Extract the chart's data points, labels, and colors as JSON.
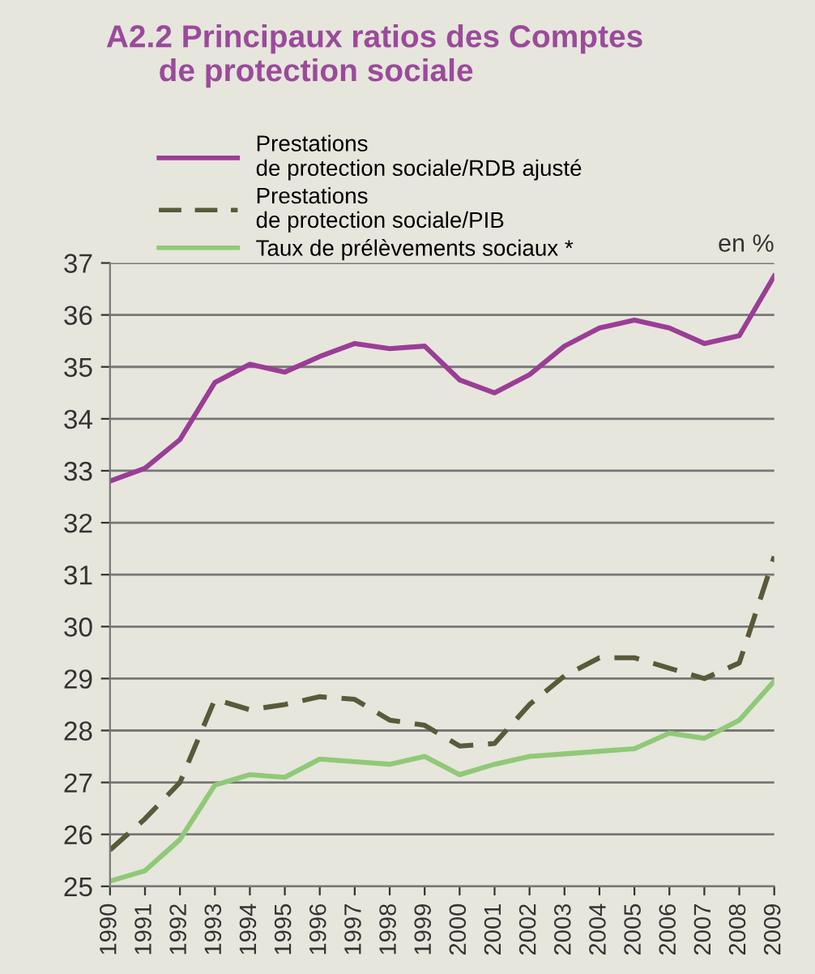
{
  "chart_data": {
    "type": "line",
    "title": "A2.2 Principaux ratios des Comptes\n      de protection sociale",
    "annotations": [
      "en %"
    ],
    "categories": [
      "1990",
      "1991",
      "1992",
      "1993",
      "1994",
      "1995",
      "1996",
      "1997",
      "1998",
      "1999",
      "2000",
      "2001",
      "2002",
      "2003",
      "2004",
      "2005",
      "2006",
      "2007",
      "2008",
      "2009"
    ],
    "series": [
      {
        "name": "Prestations\nde protection sociale/RDB ajusté",
        "color": "#9b3d96",
        "line_style": "solid",
        "values": [
          32.8,
          33.05,
          33.6,
          34.7,
          35.05,
          34.9,
          35.2,
          35.45,
          35.35,
          35.4,
          34.75,
          34.5,
          34.85,
          35.4,
          35.75,
          35.9,
          35.75,
          35.45,
          35.6,
          36.75
        ]
      },
      {
        "name": "Prestations\nde protection sociale/PIB",
        "color": "#5a5a3a",
        "line_style": "dashed",
        "values": [
          25.7,
          26.3,
          27.0,
          28.6,
          28.4,
          28.5,
          28.65,
          28.6,
          28.2,
          28.1,
          27.7,
          27.75,
          28.5,
          29.05,
          29.4,
          29.4,
          29.2,
          29.0,
          29.3,
          31.35
        ]
      },
      {
        "name": "Taux de prélèvements sociaux *",
        "color": "#90c978",
        "line_style": "solid",
        "values": [
          25.1,
          25.3,
          25.9,
          26.95,
          27.15,
          27.1,
          27.45,
          27.4,
          27.35,
          27.5,
          27.15,
          27.35,
          27.5,
          27.55,
          27.6,
          27.65,
          27.95,
          27.85,
          28.2,
          28.95
        ]
      }
    ],
    "ylim": [
      25,
      37
    ],
    "yticks": [
      25,
      26,
      27,
      28,
      29,
      30,
      31,
      32,
      33,
      34,
      35,
      36,
      37
    ],
    "grid": "y",
    "legend": "top left",
    "marker": "none"
  }
}
